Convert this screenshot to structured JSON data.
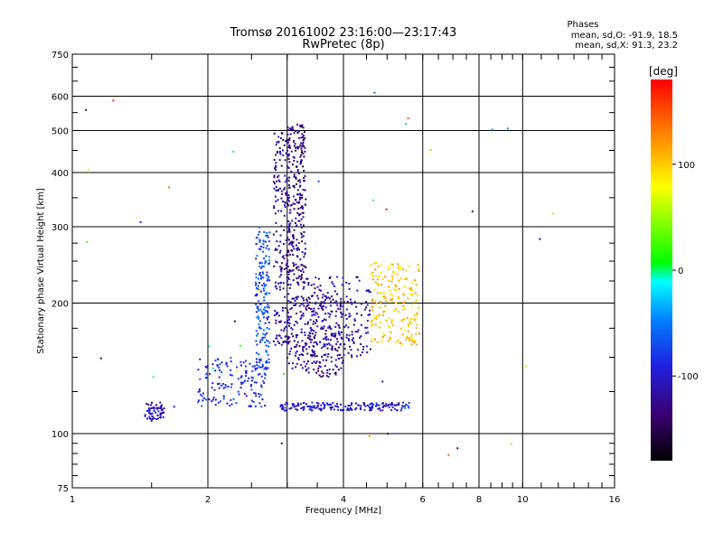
{
  "chart_data": {
    "type": "scatter",
    "title": "Tromsø 20161002 23:16:00—23:17:43",
    "subtitle": "RwPretec (8p)",
    "xlabel": "Frequency [MHz]",
    "ylabel": "Stationary phase Virtual Height [km]",
    "x_scale": "log",
    "y_scale": "log",
    "xlim": [
      1,
      16
    ],
    "ylim": [
      75,
      750
    ],
    "x_ticks": [
      1,
      2,
      4,
      6,
      8,
      10,
      16
    ],
    "y_ticks": [
      75,
      100,
      200,
      300,
      400,
      500,
      600,
      750
    ],
    "x_grid": [
      2,
      3,
      4,
      6,
      8,
      10
    ],
    "y_grid": [
      100,
      200,
      300,
      400,
      500,
      600
    ],
    "grid": true,
    "legend": {
      "title": "Phases",
      "line1": "mean, sd,O: -91.9, 18.5",
      "line2": "mean, sd,X:  91.3, 23.2",
      "placement": "top-right"
    },
    "colorbar": {
      "label": "[deg]",
      "range": [
        -180,
        180
      ],
      "ticks": [
        100,
        0,
        -100
      ],
      "tick_labels": [
        "100",
        "0",
        "-100"
      ],
      "colormap": [
        "#000000",
        "#3a0070",
        "#2020e0",
        "#0080ff",
        "#00ffff",
        "#00ff00",
        "#ffff00",
        "#ff8000",
        "#ff0000"
      ]
    },
    "series_groups": [
      {
        "desc": "low-frequency trace",
        "f": [
          1.45,
          1.6
        ],
        "h": [
          107,
          118
        ],
        "phase": -110,
        "n": 60
      },
      {
        "desc": "rising trace",
        "f": [
          1.9,
          2.7
        ],
        "h": [
          115,
          150
        ],
        "phase": -85,
        "n": 150
      },
      {
        "desc": "vertical cusp",
        "f": [
          2.55,
          2.75
        ],
        "h": [
          140,
          300
        ],
        "phase": -70,
        "n": 180
      },
      {
        "desc": "vertical cusp",
        "f": [
          2.8,
          3.05
        ],
        "h": [
          160,
          500
        ],
        "phase": -120,
        "n": 200
      },
      {
        "desc": "F-layer trace",
        "f": [
          3.0,
          3.3
        ],
        "h": [
          220,
          520
        ],
        "phase": -130,
        "n": 260
      },
      {
        "desc": "F trace",
        "f": [
          3.0,
          4.0
        ],
        "h": [
          135,
          210
        ],
        "phase": -125,
        "n": 260
      },
      {
        "desc": "F2 trace",
        "f": [
          3.2,
          4.6
        ],
        "h": [
          150,
          230
        ],
        "phase": -115,
        "n": 200
      },
      {
        "desc": "E-layer flat trace",
        "f": [
          2.9,
          5.6
        ],
        "h": [
          113,
          118
        ],
        "phase": -100,
        "n": 180
      },
      {
        "desc": "X trace cluster",
        "f": [
          4.6,
          5.9
        ],
        "h": [
          160,
          250
        ],
        "phase": 100,
        "n": 200
      },
      {
        "desc": "scattered points",
        "f": [
          1.05,
          12.0
        ],
        "h": [
          85,
          620
        ],
        "phase": 0,
        "n": 40
      }
    ]
  }
}
